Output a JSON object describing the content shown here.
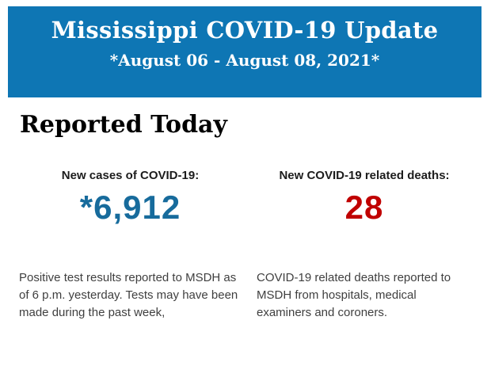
{
  "banner": {
    "title": "Mississippi COVID-19 Update",
    "subtitle": "*August 06 - August 08, 2021*",
    "background_color": "#0e76b4",
    "text_color": "#ffffff"
  },
  "page": {
    "heading": "Reported Today",
    "background_color": "#ffffff"
  },
  "stats": {
    "cases": {
      "label": "New cases of COVID-19:",
      "value": "*6,912",
      "value_color": "#176b9c",
      "description": "Positive test results reported to MSDH as of 6 p.m. yesterday. Tests may have been made during the past week,"
    },
    "deaths": {
      "label": "New COVID-19 related deaths:",
      "value": "28",
      "value_color": "#c00000",
      "description": "COVID-19 related deaths reported to MSDH from hospitals, medical examiners and coroners."
    }
  }
}
